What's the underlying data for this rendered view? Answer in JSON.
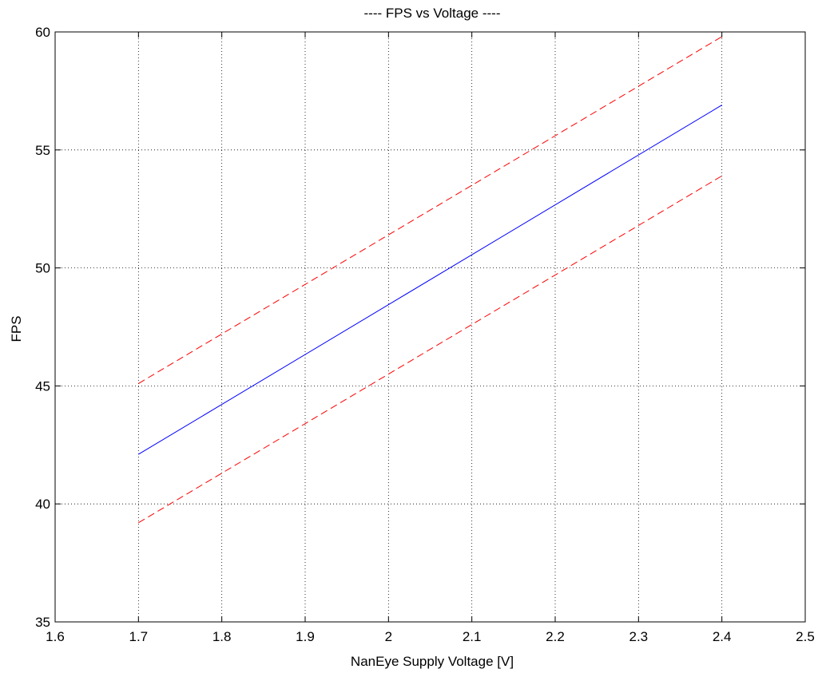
{
  "chart_data": {
    "type": "line",
    "title": "---- FPS vs Voltage ----",
    "xlabel": "NanEye Supply Voltage [V]",
    "ylabel": "FPS",
    "xlim": [
      1.6,
      2.5
    ],
    "ylim": [
      35,
      60
    ],
    "xticks": [
      "1.6",
      "1.7",
      "1.8",
      "1.9",
      "2",
      "2.1",
      "2.2",
      "2.3",
      "2.4",
      "2.5"
    ],
    "yticks": [
      "35",
      "40",
      "45",
      "50",
      "55",
      "60"
    ],
    "grid": true,
    "legend": "none",
    "series": [
      {
        "style": "solid",
        "color": "#0000ff",
        "x": [
          1.7,
          2.4
        ],
        "y": [
          42.1,
          56.9
        ]
      },
      {
        "style": "dashed",
        "color": "#ff0000",
        "x": [
          1.7,
          2.4
        ],
        "y": [
          45.1,
          59.8
        ]
      },
      {
        "style": "dashed",
        "color": "#ff0000",
        "x": [
          1.7,
          2.4
        ],
        "y": [
          39.2,
          53.9
        ]
      }
    ]
  }
}
